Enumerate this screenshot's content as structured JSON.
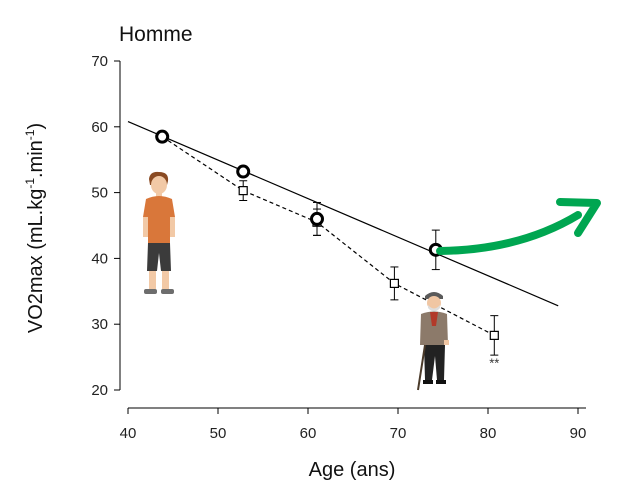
{
  "chart_data": {
    "type": "scatter",
    "title": "Homme",
    "xlabel": "Age (ans)",
    "ylabel": {
      "base": "VO2max (mL.kg",
      "sup1": "-1",
      "mid": ".min",
      "sup2": "-1",
      "end": ")"
    },
    "xlim": [
      40,
      90
    ],
    "ylim": [
      20,
      70
    ],
    "xticks": [
      40,
      50,
      60,
      70,
      80,
      90
    ],
    "yticks": [
      20,
      30,
      40,
      50,
      60,
      70
    ],
    "grid": false,
    "series": [
      {
        "marker": "circle",
        "x": [
          43.8,
          52.8,
          61.0,
          74.2
        ],
        "y": [
          58.5,
          53.2,
          46.0,
          41.3
        ],
        "err": [
          0.8,
          0.8,
          2.5,
          3.0
        ]
      },
      {
        "marker": "square",
        "x": [
          43.8,
          52.8,
          61.0,
          69.6,
          80.7
        ],
        "y": [
          58.5,
          50.3,
          45.5,
          36.2,
          28.3
        ],
        "err": [
          0.6,
          1.5,
          2.0,
          2.5,
          3.0
        ]
      }
    ],
    "regression_line": {
      "x": [
        40,
        87.8
      ],
      "y": [
        60.8,
        32.8
      ]
    },
    "annotations": [
      {
        "text": "**",
        "x": 80.7,
        "y": 24.0
      }
    ],
    "arrow_color": "#00a651"
  }
}
